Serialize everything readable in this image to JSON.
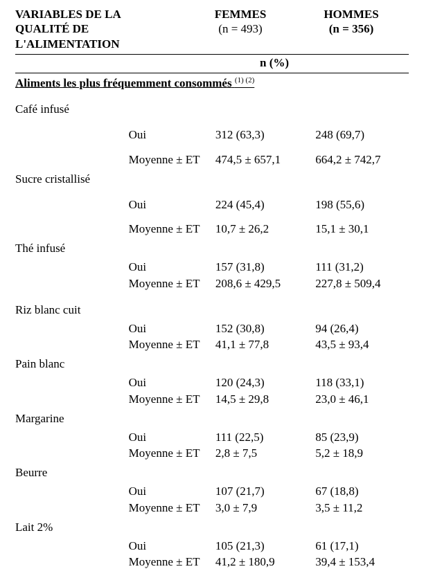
{
  "header": {
    "var_title_l1": "VARIABLES DE LA",
    "var_title_l2": "QUALITÉ DE",
    "var_title_l3": "L'ALIMENTATION",
    "femmes_label": "FEMMES",
    "femmes_n": "(n = 493)",
    "hommes_label": "HOMMES",
    "hommes_n": "(n = 356)",
    "n_pct": "n (%)"
  },
  "section_title": "Aliments les plus fréquemment consommés",
  "section_sup": "(1) (2)",
  "labels": {
    "oui": "Oui",
    "moyenne": "Moyenne ± ET"
  },
  "foods": [
    {
      "name": "Café infusé",
      "oui_f": "312 (63,3)",
      "oui_h": "248 (69,7)",
      "m_f": "474,5 ± 657,1",
      "m_h": "664,2 ± 742,7"
    },
    {
      "name": "Sucre cristallisé",
      "oui_f": "224 (45,4)",
      "oui_h": "198 (55,6)",
      "m_f": "10,7 ± 26,2",
      "m_h": "15,1 ± 30,1"
    },
    {
      "name": "Thé infusé",
      "oui_f": "157 (31,8)",
      "oui_h": "111 (31,2)",
      "m_f": "208,6 ± 429,5",
      "m_h": "227,8 ± 509,4"
    },
    {
      "name": "Riz blanc cuit",
      "oui_f": "152 (30,8)",
      "oui_h": "94 (26,4)",
      "m_f": "41,1 ± 77,8",
      "m_h": "43,5 ± 93,4"
    },
    {
      "name": "Pain blanc",
      "oui_f": "120 (24,3)",
      "oui_h": "118 (33,1)",
      "m_f": "14,5 ± 29,8",
      "m_h": "23,0 ± 46,1"
    },
    {
      "name": "Margarine",
      "oui_f": "111 (22,5)",
      "oui_h": "85 (23,9)",
      "m_f": "2,8 ± 7,5",
      "m_h": "5,2 ± 18,9"
    },
    {
      "name": "Beurre",
      "oui_f": "107 (21,7)",
      "oui_h": "67 (18,8)",
      "m_f": "3,0 ± 7,9",
      "m_h": "3,5 ± 11,2"
    },
    {
      "name": "Lait 2%",
      "oui_f": "105 (21,3)",
      "oui_h": "61 (17,1)",
      "m_f": "41,2 ± 180,9",
      "m_h": "39,4 ± 153,4"
    }
  ]
}
